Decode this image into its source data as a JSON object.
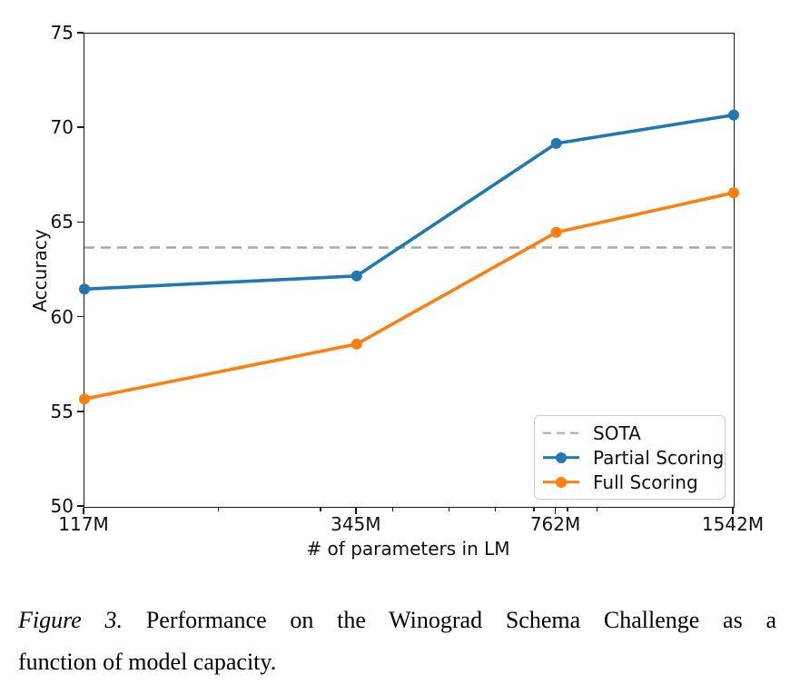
{
  "chart_data": {
    "type": "line",
    "title": "",
    "xlabel": "# of parameters in LM",
    "ylabel": "Accuracy",
    "x_scale": "log",
    "x_values": [
      117,
      345,
      762,
      1542
    ],
    "x_tick_labels": [
      "117M",
      "345M",
      "762M",
      "1542M"
    ],
    "x_minor_tick_values": [
      200,
      300,
      400,
      500,
      600,
      700,
      800,
      900
    ],
    "ylim": [
      50,
      75
    ],
    "y_ticks": [
      50,
      55,
      60,
      65,
      70,
      75
    ],
    "grid": false,
    "series": [
      {
        "name": "Partial Scoring",
        "color": "#1f77b4",
        "marker": "circle",
        "values": [
          61.5,
          62.2,
          69.2,
          70.7
        ]
      },
      {
        "name": "Full Scoring",
        "color": "#ff7f0e",
        "marker": "circle",
        "values": [
          55.7,
          58.6,
          64.5,
          66.6
        ]
      }
    ],
    "reference_line": {
      "name": "SOTA",
      "value": 63.7,
      "color": "#a9a9a9",
      "style": "dashed"
    },
    "legend": {
      "position": "lower right",
      "items": [
        "SOTA",
        "Partial Scoring",
        "Full Scoring"
      ]
    }
  },
  "caption": {
    "label": "Figure 3.",
    "line1": "Performance on the Winograd Schema Challenge as a",
    "line2": "function of model capacity."
  }
}
